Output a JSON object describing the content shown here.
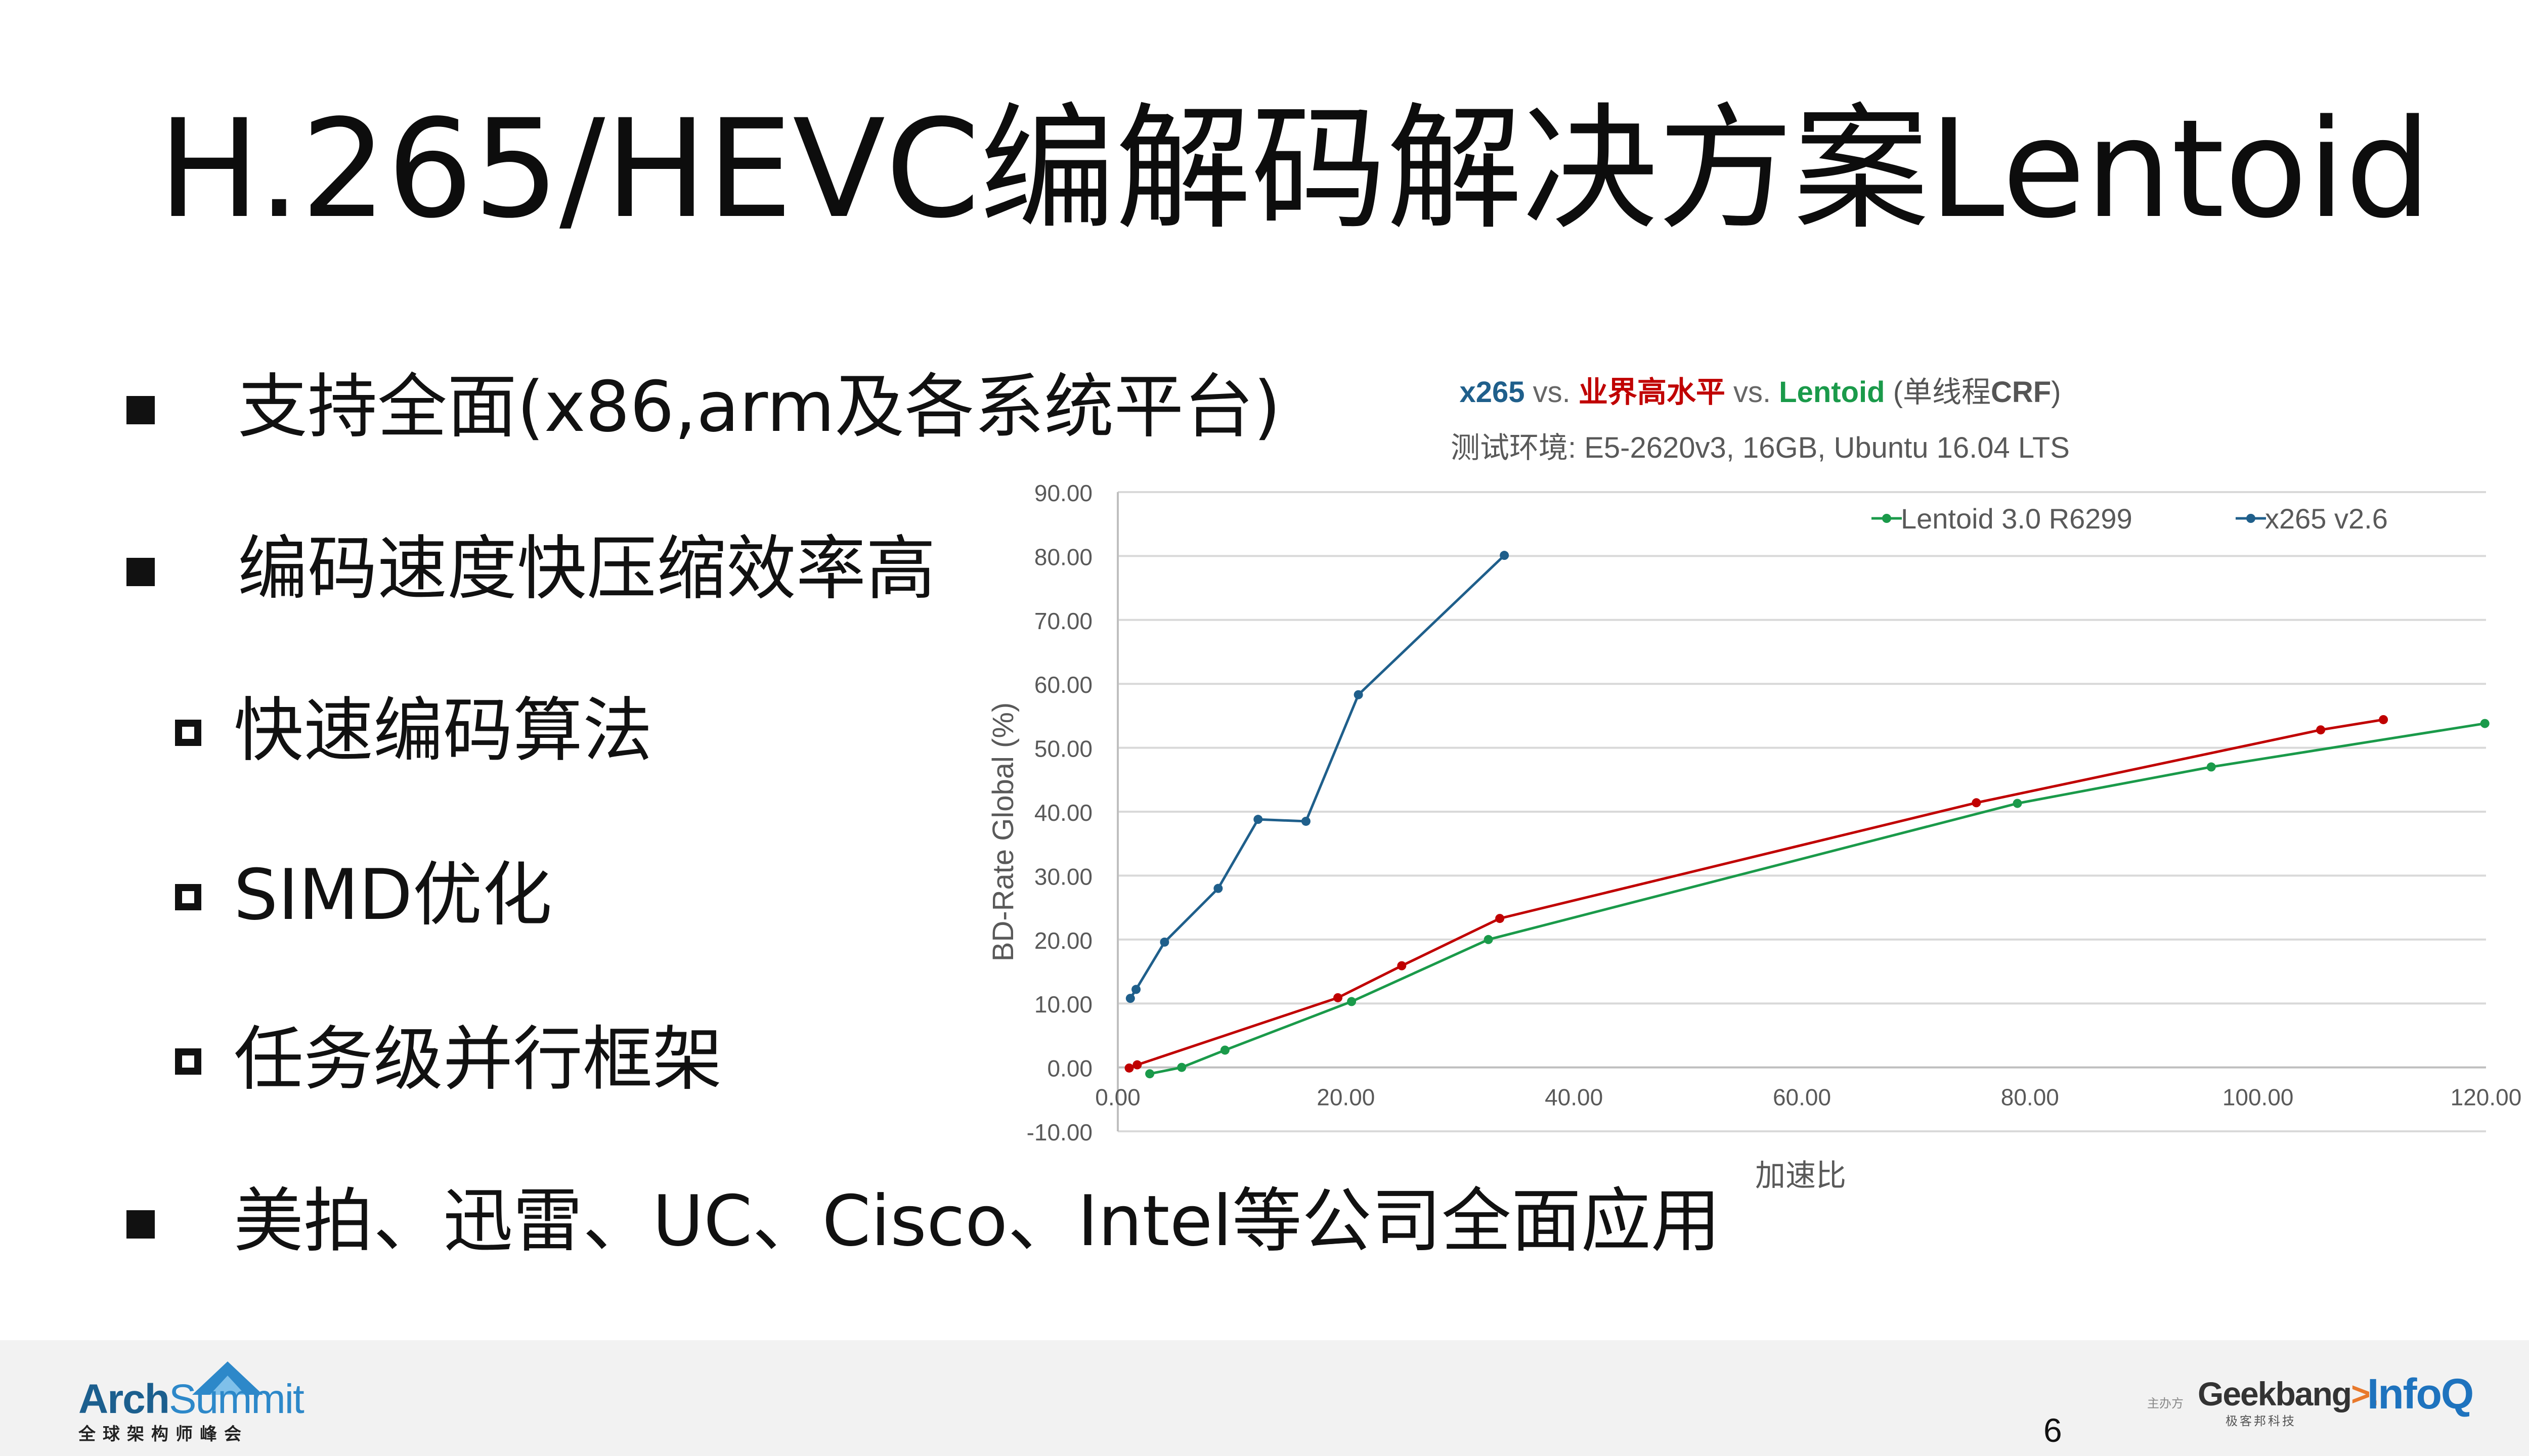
{
  "slide": {
    "title": "H.265/HEVC编解码解决方案Lentoid",
    "page_number": "6"
  },
  "bullets": [
    {
      "level": 1,
      "text": "支持全面(x86,arm及各系统平台)"
    },
    {
      "level": 1,
      "text": "编码速度快压缩效率高"
    },
    {
      "level": 2,
      "text": "快速编码算法"
    },
    {
      "level": 2,
      "text": "SIMD优化"
    },
    {
      "level": 2,
      "text": "任务级并行框架"
    },
    {
      "level": 1,
      "text": "美拍、迅雷、UC、Cisco、Intel等公司全面应用"
    }
  ],
  "chart_data": {
    "type": "scatter",
    "title_parts": [
      {
        "text": "x265",
        "color": "#1f5f8b",
        "bold": true
      },
      {
        "text": " vs. ",
        "color": "#666666",
        "bold": false
      },
      {
        "text": "业界高水平",
        "color": "#c00000",
        "bold": true
      },
      {
        "text": " vs. ",
        "color": "#666666",
        "bold": false
      },
      {
        "text": "Lentoid",
        "color": "#1a9a4a",
        "bold": true
      },
      {
        "text": " (单线程",
        "color": "#555555",
        "bold": false
      },
      {
        "text": "CRF",
        "color": "#555555",
        "bold": true
      },
      {
        "text": ")",
        "color": "#555555",
        "bold": false
      }
    ],
    "subtitle": "测试环境: E5-2620v3, 16GB, Ubuntu 16.04 LTS",
    "xlabel": "加速比",
    "ylabel": "BD-Rate Global (%)",
    "xlim": [
      0,
      120
    ],
    "ylim": [
      -10,
      90
    ],
    "x_ticks": [
      "0.00",
      "20.00",
      "40.00",
      "60.00",
      "80.00",
      "100.00",
      "120.00"
    ],
    "y_ticks": [
      "-10.00",
      "0.00",
      "10.00",
      "20.00",
      "30.00",
      "40.00",
      "50.00",
      "60.00",
      "70.00",
      "80.00",
      "90.00"
    ],
    "grid": "horizontal",
    "legend_position": "top-right",
    "series": [
      {
        "name": "Lentoid 3.0 R6299",
        "color": "#1a9a4a",
        "points": [
          [
            2.8,
            -1.0
          ],
          [
            5.6,
            0.0
          ],
          [
            9.4,
            2.7
          ],
          [
            20.5,
            10.3
          ],
          [
            32.5,
            20.0
          ],
          [
            78.9,
            41.3
          ],
          [
            95.9,
            47.0
          ],
          [
            119.9,
            53.8
          ]
        ]
      },
      {
        "name": "x265 v2.6",
        "color": "#1f5f8b",
        "points": [
          [
            1.1,
            10.8
          ],
          [
            1.6,
            12.2
          ],
          [
            4.1,
            19.6
          ],
          [
            8.8,
            28.0
          ],
          [
            12.3,
            38.8
          ],
          [
            16.5,
            38.5
          ],
          [
            21.1,
            58.3
          ],
          [
            33.9,
            80.1
          ]
        ]
      },
      {
        "color": "#c00000",
        "points": [
          [
            1.0,
            -0.1
          ],
          [
            1.7,
            0.4
          ],
          [
            19.3,
            10.9
          ],
          [
            24.9,
            15.9
          ],
          [
            33.5,
            23.3
          ],
          [
            75.3,
            41.4
          ],
          [
            105.5,
            52.8
          ],
          [
            111.0,
            54.4
          ]
        ]
      }
    ]
  },
  "footer": {
    "left_logo": {
      "main": "Arch",
      "accent": "Summit",
      "sub": "全球架构师峰会"
    },
    "host_label": "主办方",
    "geek_logo": {
      "text": "Geekbang",
      "suffix": ">.",
      "sub": "极客邦科技"
    },
    "infoq_logo": "InfoQ",
    "colors": {
      "bg": "#f2f2f2",
      "arch": "#1c5f8e",
      "summit": "#2d88c9",
      "geek_accent": "#e8792c",
      "infoq": "#1e73be"
    }
  }
}
